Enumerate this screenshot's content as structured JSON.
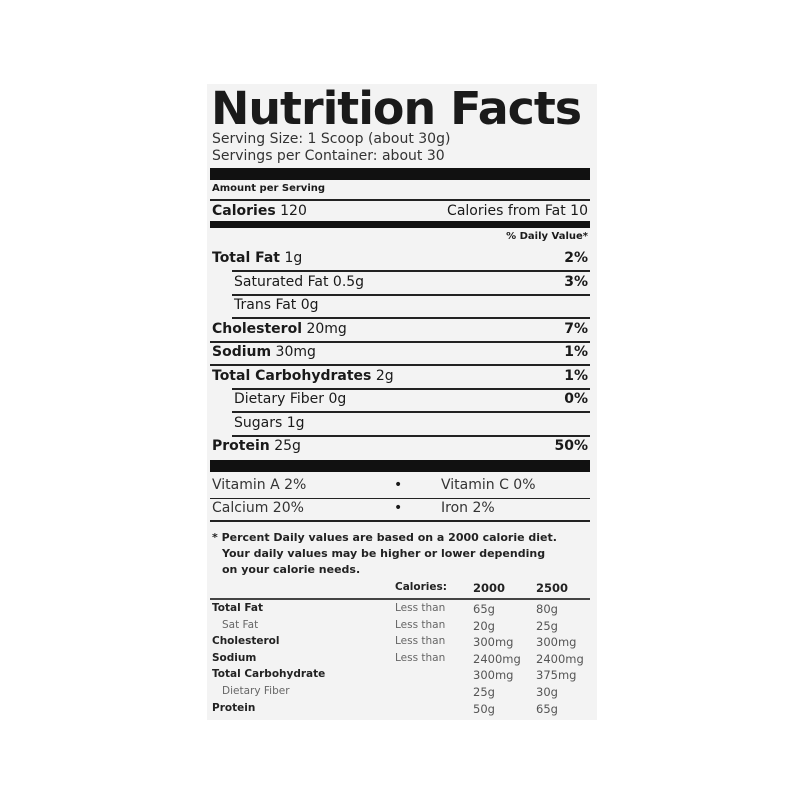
{
  "title": "Nutrition Facts",
  "serving_size": "Serving Size: 1 Scoop (about 30g)",
  "servings_per_container": "Servings per Container: about 30",
  "amount_per_serving": "Amount per Serving",
  "calories": {
    "label": "Calories",
    "value": "120",
    "from_fat": "Calories from Fat 10"
  },
  "dv_header": "% Daily Value*",
  "nutrients": [
    {
      "label": "Total Fat",
      "amount": "1g",
      "dv": "2%"
    },
    {
      "label": "Saturated Fat",
      "amount": "0.5g",
      "dv": "3%"
    },
    {
      "label": "Trans Fat",
      "amount": "0g",
      "dv": ""
    },
    {
      "label": "Cholesterol",
      "amount": "20mg",
      "dv": "7%"
    },
    {
      "label": "Sodium",
      "amount": "30mg",
      "dv": "1%"
    },
    {
      "label": "Total Carbohydrates",
      "amount": "2g",
      "dv": "1%"
    },
    {
      "label": "Dietary Fiber",
      "amount": "0g",
      "dv": "0%"
    },
    {
      "label": "Sugars",
      "amount": "1g",
      "dv": ""
    },
    {
      "label": "Protein",
      "amount": "25g",
      "dv": "50%"
    }
  ],
  "vitamins": [
    {
      "left": "Vitamin A  2%",
      "right": "Vitamin C  0%"
    },
    {
      "left": "Calcium  20%",
      "right": "Iron  2%"
    }
  ],
  "bullet": "•",
  "footnote": [
    "* Percent Daily values are based on a 2000 calorie diet.",
    "Your daily values may be higher or lower depending",
    "on your calorie needs."
  ],
  "reference_table": {
    "header": [
      "Calories:",
      "2000",
      "2500"
    ],
    "rows": [
      {
        "label": "Total Fat",
        "qual": "Less than",
        "v2000": "65g",
        "v2500": "80g"
      },
      {
        "label": "Sat Fat",
        "qual": "Less than",
        "v2000": "20g",
        "v2500": "25g"
      },
      {
        "label": "Cholesterol",
        "qual": "Less than",
        "v2000": "300mg",
        "v2500": "300mg"
      },
      {
        "label": "Sodium",
        "qual": "Less than",
        "v2000": "2400mg",
        "v2500": "2400mg"
      },
      {
        "label": "Total Carbohydrate",
        "qual": "",
        "v2000": "300mg",
        "v2500": "375mg"
      },
      {
        "label": "Dietary Fiber",
        "qual": "",
        "v2000": "25g",
        "v2500": "30g"
      },
      {
        "label": "Protein",
        "qual": "",
        "v2000": "50g",
        "v2500": "65g"
      }
    ]
  }
}
